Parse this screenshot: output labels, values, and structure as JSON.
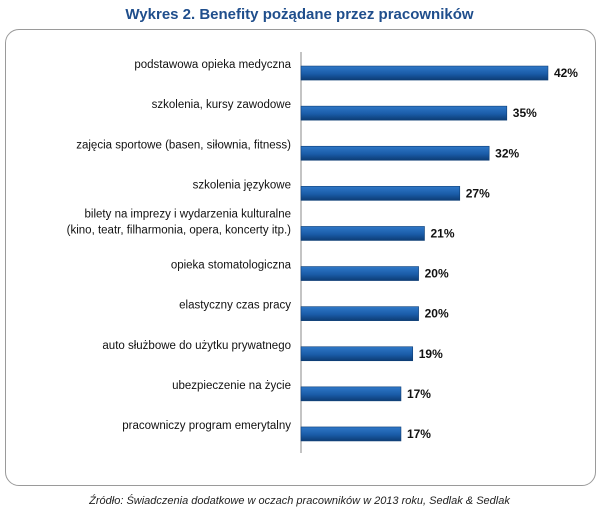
{
  "title": "Wykres 2. Benefity pożądane przez pracowników",
  "source": "Źródło: Świadczenia dodatkowe w oczach pracowników w 2013 roku, Sedlak & Sedlak",
  "colors": {
    "bar": "#1a5ca8",
    "bar_dark": "#0d3d75",
    "axis": "#8a8a8a",
    "title": "#1f4e8c"
  },
  "chart_data": {
    "type": "bar",
    "orientation": "horizontal",
    "categories": [
      [
        "podstawowa opieka medyczna"
      ],
      [
        "szkolenia, kursy zawodowe"
      ],
      [
        "zajęcia sportowe (basen, siłownia, fitness)"
      ],
      [
        "szkolenia językowe"
      ],
      [
        "bilety na imprezy i wydarzenia kulturalne",
        "(kino, teatr, filharmonia, opera, koncerty itp.)"
      ],
      [
        "opieka stomatologiczna"
      ],
      [
        "elastyczny czas pracy"
      ],
      [
        "auto służbowe do użytku prywatnego"
      ],
      [
        "ubezpieczenie na życie"
      ],
      [
        "pracowniczy program emerytalny"
      ]
    ],
    "values": [
      42,
      35,
      32,
      27,
      21,
      20,
      20,
      19,
      17,
      17
    ],
    "data_labels": [
      "42%",
      "35%",
      "32%",
      "27%",
      "21%",
      "20%",
      "20%",
      "19%",
      "17%",
      "17%"
    ],
    "unit": "%",
    "xlim": [
      0,
      45
    ],
    "grid": false,
    "legend": "none"
  }
}
